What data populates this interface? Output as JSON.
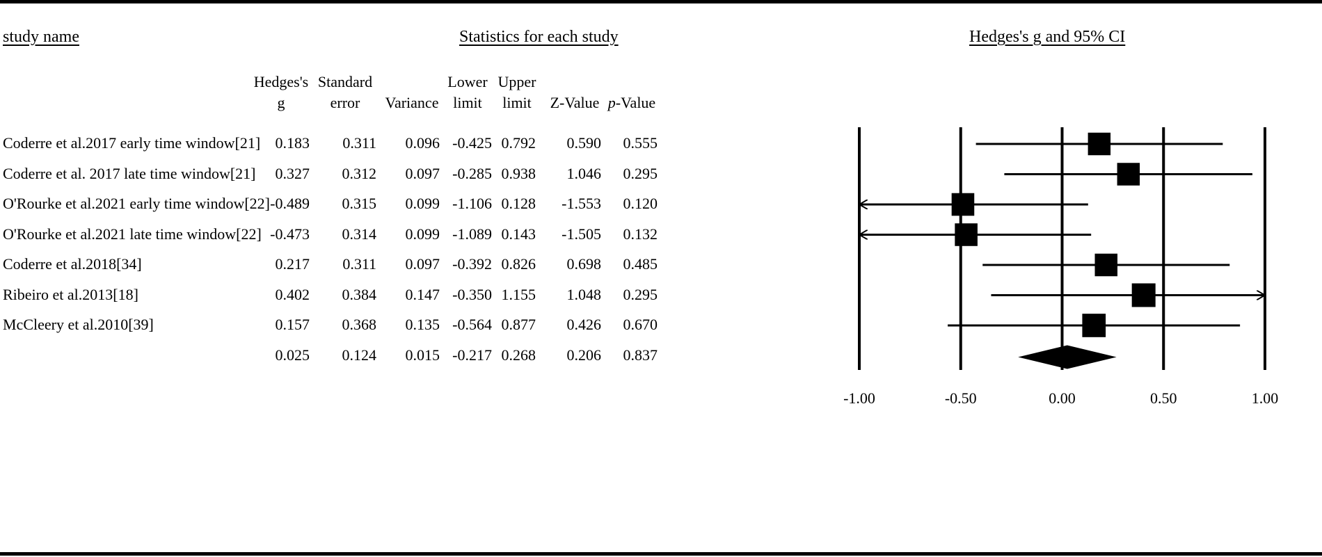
{
  "headers": {
    "study_name": "study name",
    "statistics": "Statistics for each study",
    "plot": "Hedges's g and 95% CI"
  },
  "columns": [
    {
      "line1": "Hedges's",
      "line2": "g"
    },
    {
      "line1": "Standard",
      "line2": "error"
    },
    {
      "line1": "",
      "line2": "Variance"
    },
    {
      "line1": "Lower",
      "line2": "limit"
    },
    {
      "line1": "Upper",
      "line2": "limit"
    },
    {
      "line1": "",
      "line2": "Z-Value"
    },
    {
      "line1": "",
      "line2": "p-Value"
    }
  ],
  "rows": [
    {
      "name": "Coderre et al.2017 early time window[21]",
      "values": [
        "0.183",
        "0.311",
        "0.096",
        "-0.425",
        "0.792",
        "0.590",
        "0.555"
      ]
    },
    {
      "name": "Coderre et al. 2017 late time window[21]",
      "values": [
        "0.327",
        "0.312",
        "0.097",
        "-0.285",
        "0.938",
        "1.046",
        "0.295"
      ]
    },
    {
      "name": "O'Rourke et al.2021 early time window[22]",
      "values": [
        "-0.489",
        "0.315",
        "0.099",
        "-1.106",
        "0.128",
        "-1.553",
        "0.120"
      ]
    },
    {
      "name": "O'Rourke et al.2021 late time window[22]",
      "values": [
        "-0.473",
        "0.314",
        "0.099",
        "-1.089",
        "0.143",
        "-1.505",
        "0.132"
      ]
    },
    {
      "name": "Coderre et al.2018[34]",
      "values": [
        "0.217",
        "0.311",
        "0.097",
        "-0.392",
        "0.826",
        "0.698",
        "0.485"
      ]
    },
    {
      "name": "Ribeiro et al.2013[18]",
      "values": [
        "0.402",
        "0.384",
        "0.147",
        "-0.350",
        "1.155",
        "1.048",
        "0.295"
      ]
    },
    {
      "name": "McCleery et al.2010[39]",
      "values": [
        "0.157",
        "0.368",
        "0.135",
        "-0.564",
        "0.877",
        "0.426",
        "0.670"
      ]
    },
    {
      "name": "",
      "values": [
        "0.025",
        "0.124",
        "0.015",
        "-0.217",
        "0.268",
        "0.206",
        "0.837"
      ]
    }
  ],
  "chart_data": {
    "type": "forest",
    "title": "Hedges's g and 95% CI",
    "xlim": [
      -1,
      1
    ],
    "ticks": [
      -1.0,
      -0.5,
      0.0,
      0.5,
      1.0
    ],
    "tick_labels": [
      "-1.00",
      "-0.50",
      "0.00",
      "0.50",
      "1.00"
    ],
    "studies": [
      {
        "name": "Coderre et al.2017 early time window[21]",
        "g": 0.183,
        "lower": -0.425,
        "upper": 0.792,
        "weight": 0.096
      },
      {
        "name": "Coderre et al. 2017 late time window[21]",
        "g": 0.327,
        "lower": -0.285,
        "upper": 0.938,
        "weight": 0.097
      },
      {
        "name": "O'Rourke et al.2021 early time window[22]",
        "g": -0.489,
        "lower": -1.106,
        "upper": 0.128,
        "weight": 0.099
      },
      {
        "name": "O'Rourke et al.2021 late time window[22]",
        "g": -0.473,
        "lower": -1.089,
        "upper": 0.143,
        "weight": 0.099
      },
      {
        "name": "Coderre et al.2018[34]",
        "g": 0.217,
        "lower": -0.392,
        "upper": 0.826,
        "weight": 0.097
      },
      {
        "name": "Ribeiro et al.2013[18]",
        "g": 0.402,
        "lower": -0.35,
        "upper": 1.155,
        "weight": 0.147
      },
      {
        "name": "McCleery et al.2010[39]",
        "g": 0.157,
        "lower": -0.564,
        "upper": 0.877,
        "weight": 0.135
      }
    ],
    "summary": {
      "g": 0.025,
      "lower": -0.217,
      "upper": 0.268
    },
    "colors": {
      "marks": "#000000"
    }
  }
}
